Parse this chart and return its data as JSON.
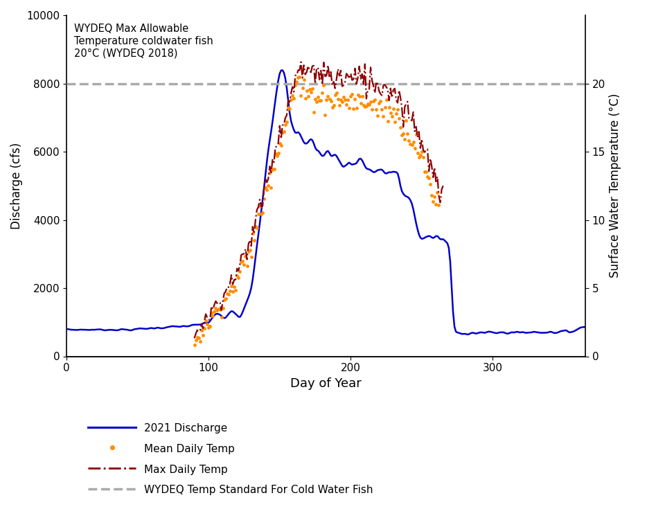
{
  "title_annotation": "WYDEQ Max Allowable\nTemperature coldwater fish\n20°C (WYDEQ 2018)",
  "xlabel": "Day of Year",
  "ylabel_left": "Discharge (cfs)",
  "ylabel_right": "Surface Water Temperature (°C)",
  "xlim": [
    0,
    365
  ],
  "ylim_left": [
    0,
    10000
  ],
  "ylim_right": [
    0,
    25
  ],
  "wydeq_standard_temp": 20,
  "legend_labels": [
    "2021 Discharge",
    "Mean Daily Temp",
    "Max Daily Temp",
    "WYDEQ Temp Standard For Cold Water Fish"
  ],
  "discharge_color": "#0000CC",
  "mean_temp_color": "#FF8C00",
  "max_temp_color": "#8B0000",
  "standard_color": "#AAAAAA",
  "background_color": "#FFFFFF",
  "xticks": [
    0,
    100,
    200,
    300
  ],
  "yticks_left": [
    0,
    2000,
    4000,
    6000,
    8000,
    10000
  ],
  "yticks_right": [
    0,
    5,
    10,
    15,
    20
  ]
}
